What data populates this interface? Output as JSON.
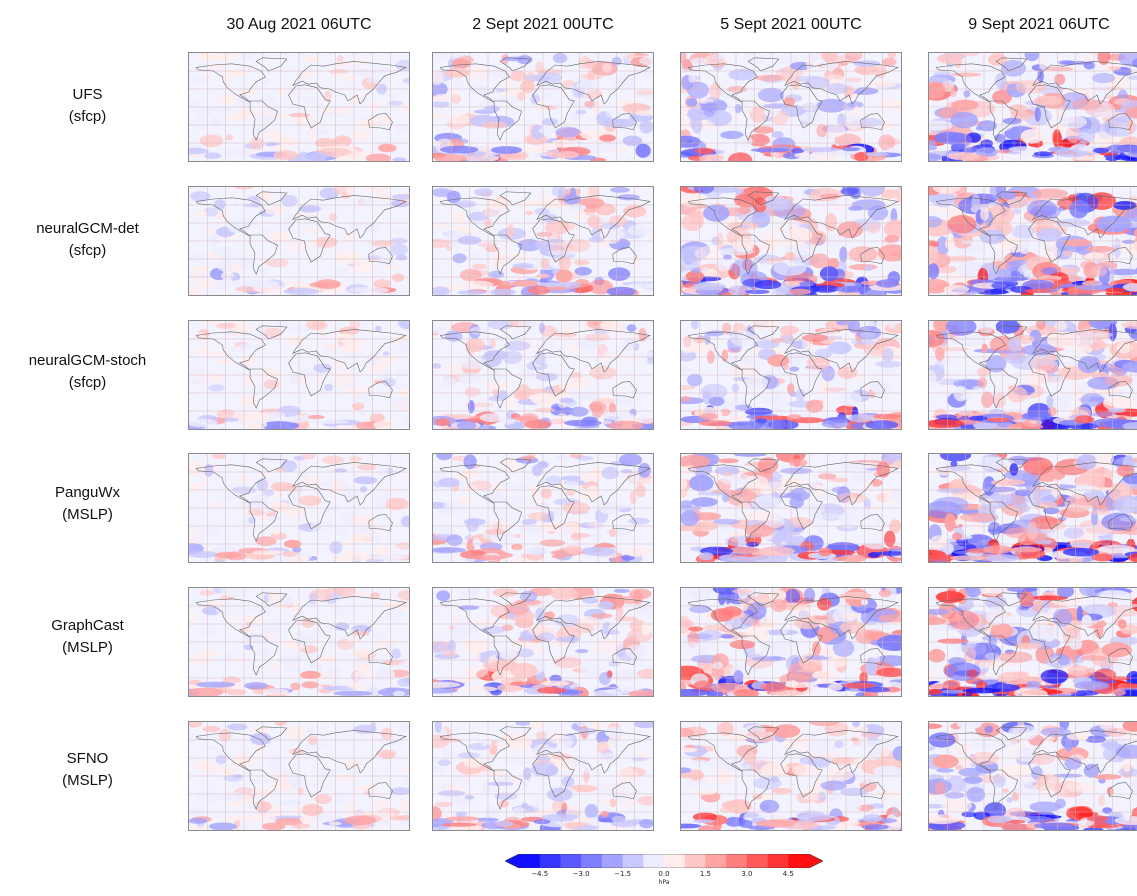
{
  "columns": [
    "30 Aug 2021 06UTC",
    "2 Sept 2021 00UTC",
    "5 Sept 2021 00UTC",
    "9 Sept 2021 06UTC"
  ],
  "rows": [
    {
      "model": "UFS",
      "field": "(sfcp)"
    },
    {
      "model": "neuralGCM-det",
      "field": "(sfcp)"
    },
    {
      "model": "neuralGCM-stoch",
      "field": "(sfcp)"
    },
    {
      "model": "PanguWx",
      "field": "(MSLP)"
    },
    {
      "model": "GraphCast",
      "field": "(MSLP)"
    },
    {
      "model": "SFNO",
      "field": "(MSLP)"
    }
  ],
  "colorbar": {
    "unit": "hPa",
    "ticks": [
      "−4.5",
      "−3.0",
      "−1.5",
      "0.0",
      "1.5",
      "3.0",
      "4.5"
    ],
    "tick_values": [
      -4.5,
      -3.0,
      -1.5,
      0.0,
      1.5,
      3.0,
      4.5
    ],
    "min": -5.25,
    "max": 5.25,
    "levels": 14,
    "extend": "both",
    "cmap": "bwr",
    "colors": {
      "negative_extreme": "#1010ff",
      "neutral": "#ffffff",
      "positive_extreme": "#ff1010"
    }
  },
  "chart_data": {
    "type": "heatmap",
    "title": "",
    "xlabel": "",
    "ylabel": "",
    "colorbar_label": "hPa",
    "panels_rows": [
      "UFS (sfcp)",
      "neuralGCM-det (sfcp)",
      "neuralGCM-stoch (sfcp)",
      "PanguWx (MSLP)",
      "GraphCast (MSLP)",
      "SFNO (MSLP)"
    ],
    "panels_columns": [
      "30 Aug 2021 06UTC",
      "2 Sept 2021 00UTC",
      "5 Sept 2021 00UTC",
      "9 Sept 2021 06UTC"
    ],
    "vmin": -5.25,
    "vmax": 5.25,
    "tick_values": [
      -4.5,
      -3.0,
      -1.5,
      0.0,
      1.5,
      3.0,
      4.5
    ],
    "panel_intensity": [
      [
        0.3,
        0.55,
        0.7,
        0.85
      ],
      [
        0.3,
        0.55,
        0.85,
        1.0
      ],
      [
        0.3,
        0.5,
        0.65,
        0.85
      ],
      [
        0.35,
        0.5,
        0.8,
        1.0
      ],
      [
        0.35,
        0.6,
        0.9,
        1.0
      ],
      [
        0.3,
        0.5,
        0.6,
        0.75
      ]
    ]
  }
}
